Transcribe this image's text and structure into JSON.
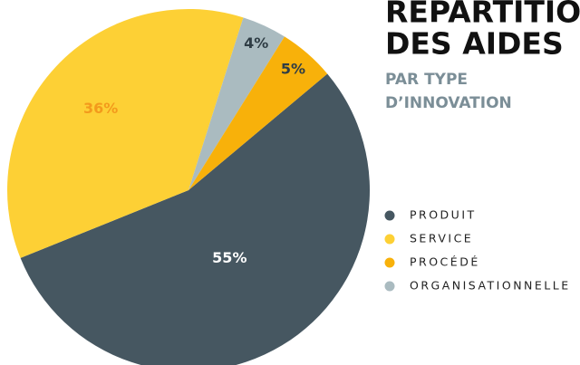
{
  "chart_data": {
    "type": "pie",
    "title": [
      "REPARTITION",
      "DES AIDES"
    ],
    "subtitle": [
      "PAR TYPE",
      "D’INNOVATION"
    ],
    "categories": [
      "PRODUIT",
      "SERVICE",
      "PROCÉDÉ",
      "ORGANISATIONNELLE"
    ],
    "values": [
      55,
      36,
      5,
      4
    ],
    "value_labels": [
      "55%",
      "36%",
      "5%",
      "4%"
    ],
    "colors": [
      "#465761",
      "#fdd035",
      "#f8b10a",
      "#aabbc0"
    ],
    "legend": "right"
  }
}
